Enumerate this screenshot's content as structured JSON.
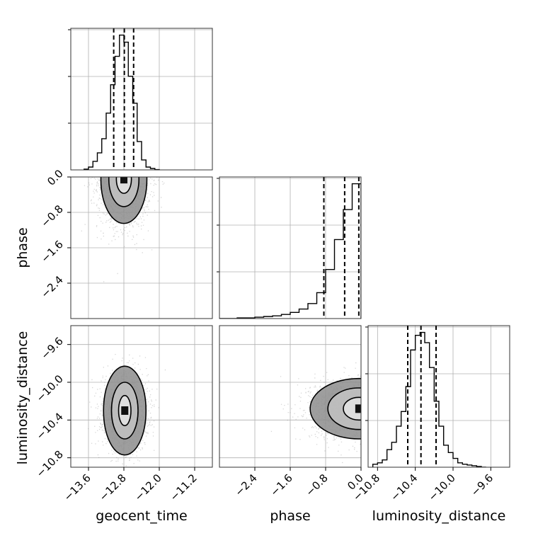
{
  "chart_data": {
    "type": "corner",
    "parameters": [
      "geocent_time",
      "phase",
      "luminosity_distance"
    ],
    "axes": {
      "geocent_time": {
        "label": "geocent_time",
        "range": [
          -14.0,
          -10.8
        ],
        "ticks": [
          -13.6,
          -12.8,
          -12.0,
          -11.2
        ],
        "tick_labels": [
          "−13.6",
          "−12.8",
          "−12.0",
          "−11.2"
        ]
      },
      "phase": {
        "label": "phase",
        "range": [
          -3.2,
          0.0
        ],
        "ticks": [
          -2.4,
          -1.6,
          -0.8,
          0.0
        ],
        "tick_labels": [
          "−2.4",
          "−1.6",
          "−0.8",
          "0.0"
        ]
      },
      "luminosity_distance": {
        "label": "luminosity_distance",
        "range": [
          -10.9,
          -9.4
        ],
        "ticks": [
          -10.8,
          -10.4,
          -10.0,
          -9.6
        ],
        "tick_labels": [
          "−10.8",
          "−10.4",
          "−10.0",
          "−9.6"
        ]
      }
    },
    "histograms": {
      "geocent_time": {
        "bin_edges": [
          -13.7,
          -13.6,
          -13.5,
          -13.4,
          -13.3,
          -13.2,
          -13.1,
          -13.0,
          -12.9,
          -12.8,
          -12.7,
          -12.6,
          -12.5,
          -12.4,
          -12.3,
          -12.2,
          -12.1,
          -12.0
        ],
        "counts": [
          0.5,
          2.0,
          6.0,
          12.0,
          22.0,
          40.0,
          60.0,
          80.0,
          95.0,
          90.0,
          66.0,
          47.0,
          20.0,
          7.0,
          2.0,
          1.0,
          0.2
        ],
        "quantiles": [
          -13.03,
          -12.79,
          -12.58
        ]
      },
      "phase": {
        "bin_edges": [
          -3.2,
          -3.0,
          -2.8,
          -2.6,
          -2.4,
          -2.2,
          -2.0,
          -1.8,
          -1.6,
          -1.4,
          -1.2,
          -1.0,
          -0.8,
          -0.6,
          -0.4,
          -0.2,
          0.0
        ],
        "counts": [
          0.0,
          0.0,
          0.5,
          0.5,
          1.0,
          1.5,
          2.0,
          3.0,
          4.5,
          7.0,
          11.0,
          19.0,
          36.0,
          58.0,
          80.0,
          99.0
        ],
        "quantiles": [
          -0.84,
          -0.37,
          -0.05
        ]
      },
      "luminosity_distance": {
        "bin_edges": [
          -10.85,
          -10.8,
          -10.75,
          -10.7,
          -10.65,
          -10.6,
          -10.55,
          -10.5,
          -10.45,
          -10.4,
          -10.35,
          -10.3,
          -10.25,
          -10.2,
          -10.15,
          -10.1,
          -10.05,
          -10.0,
          -9.95,
          -9.9,
          -9.85,
          -9.8,
          -9.75,
          -9.7,
          -9.65
        ],
        "counts": [
          2.0,
          3.0,
          5.0,
          12.0,
          17.0,
          28.0,
          38.0,
          55.0,
          80.0,
          90.0,
          92.0,
          85.0,
          68.0,
          45.0,
          28.0,
          15.0,
          10.0,
          6.0,
          3.0,
          2.0,
          1.5,
          1.0,
          0.5,
          0.0
        ],
        "quantiles": [
          -10.48,
          -10.34,
          -10.18
        ]
      }
    },
    "panels_2d": [
      {
        "x": "geocent_time",
        "y": "phase",
        "center": [
          -12.8,
          -0.05
        ],
        "contour_half_widths": [
          [
            0.17,
            0.32
          ],
          [
            0.34,
            0.62
          ],
          [
            0.52,
            1.0
          ]
        ],
        "scatter_sd": [
          0.3,
          0.55
        ]
      },
      {
        "x": "geocent_time",
        "y": "luminosity_distance",
        "center": [
          -12.78,
          -10.3
        ],
        "contour_half_widths": [
          [
            0.14,
            0.16
          ],
          [
            0.3,
            0.3
          ],
          [
            0.48,
            0.47
          ]
        ],
        "scatter_sd": [
          0.25,
          0.2
        ]
      },
      {
        "x": "phase",
        "y": "luminosity_distance",
        "center": [
          -0.05,
          -10.28
        ],
        "contour_half_widths": [
          [
            0.35,
            0.12
          ],
          [
            0.7,
            0.22
          ],
          [
            1.1,
            0.32
          ]
        ],
        "scatter_sd": [
          0.55,
          0.16
        ]
      }
    ],
    "grid": true,
    "hist_y_ticks": 3
  }
}
